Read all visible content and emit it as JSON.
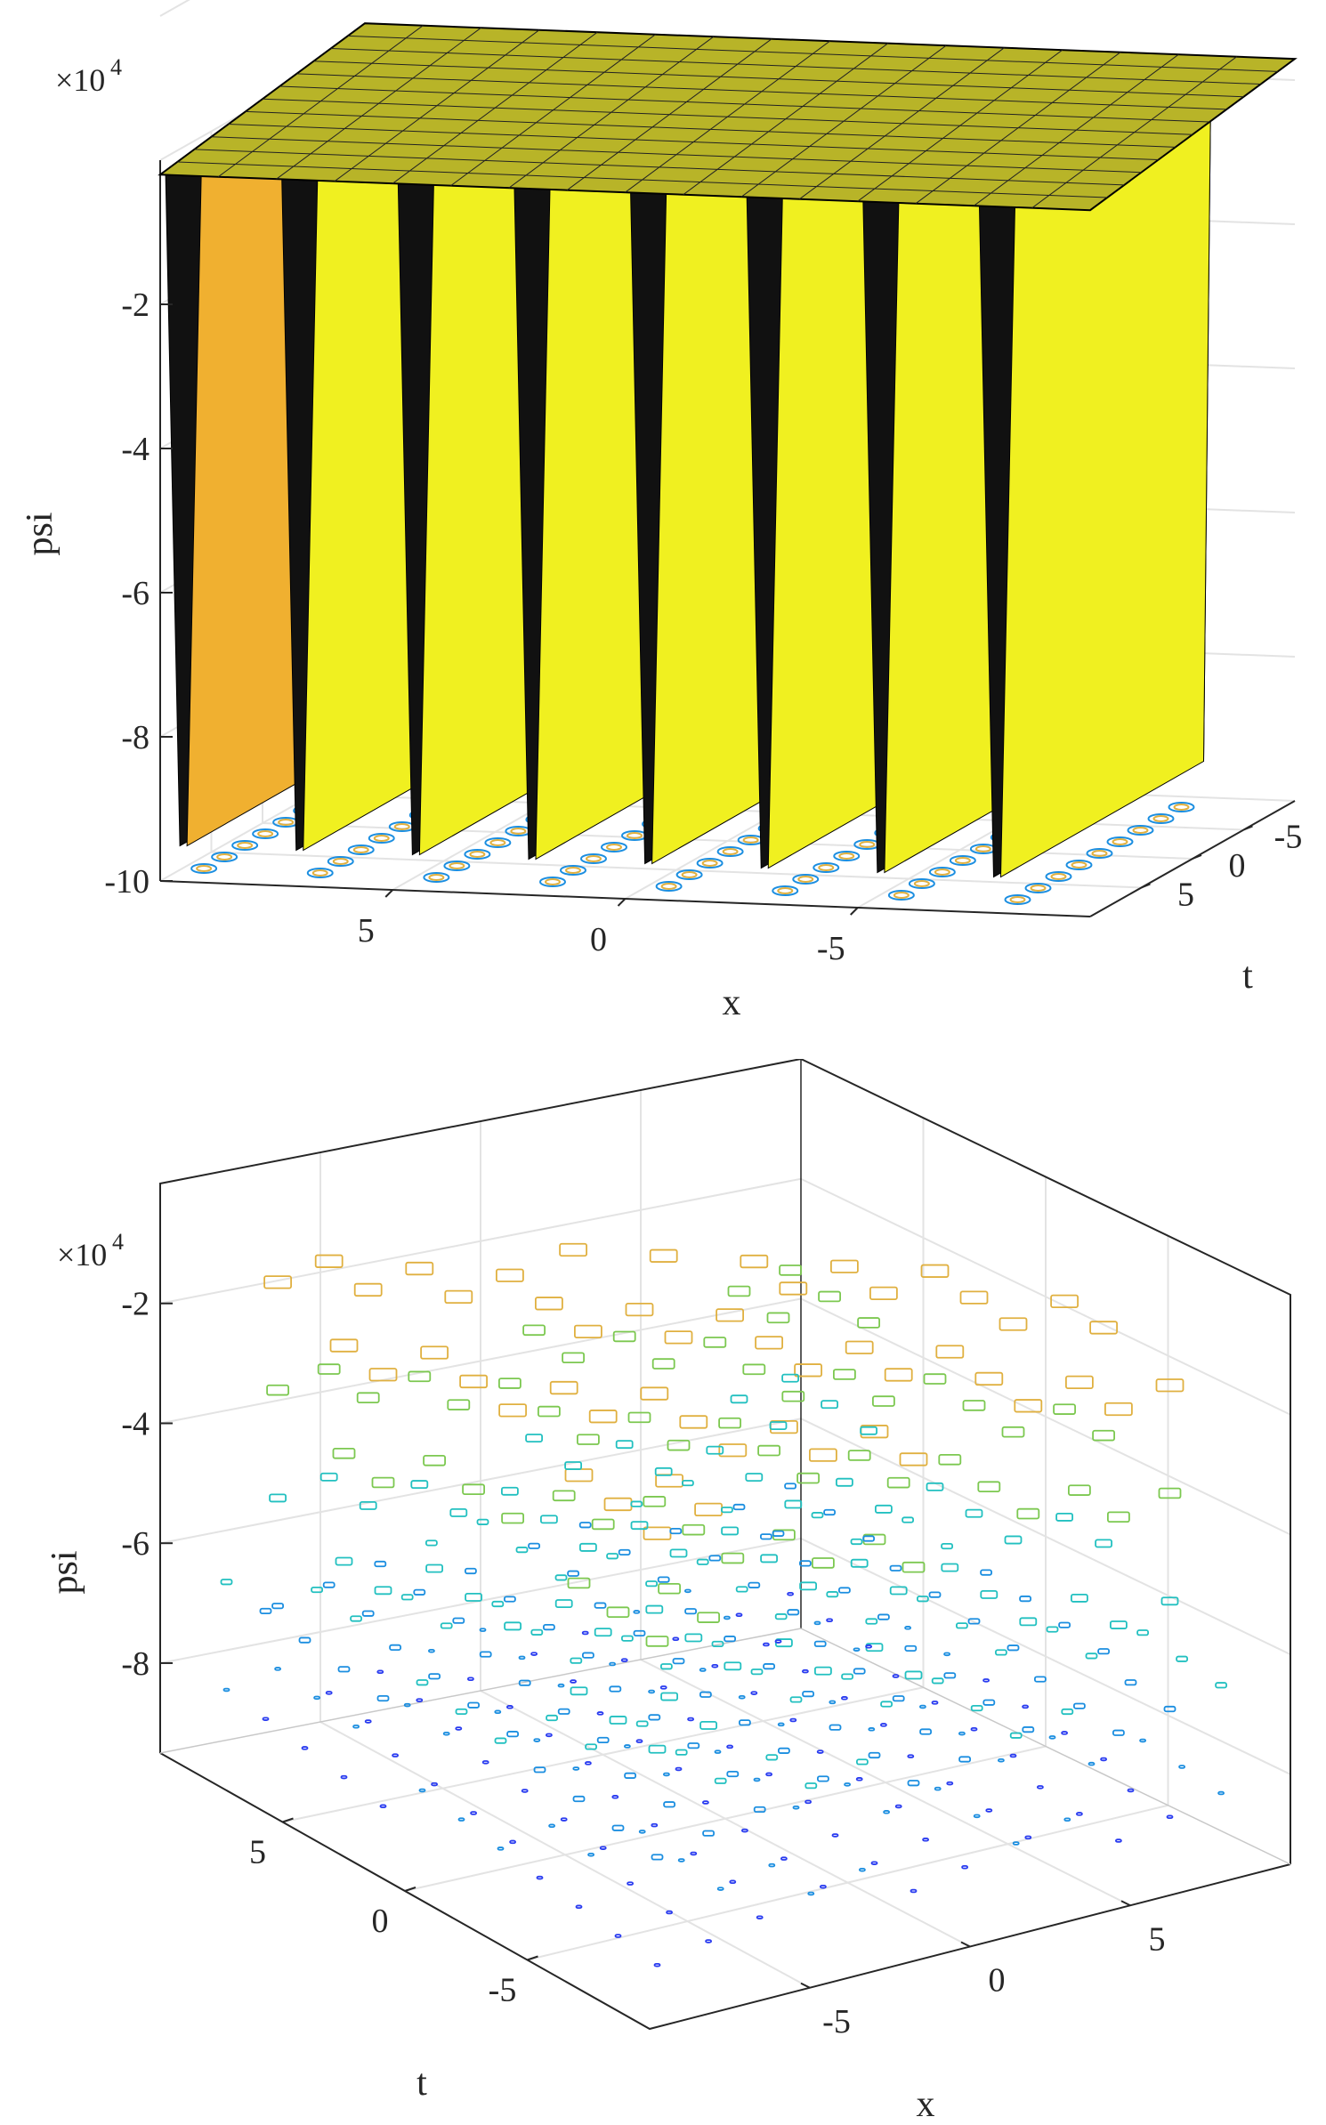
{
  "chart_data": [
    {
      "type": "surface",
      "subtype": "3d-surface-with-base-contour",
      "zlabel": "psi",
      "xlabel": "x",
      "ylabel": "t",
      "z_exponent_label": "×10",
      "z_exponent_power": "4",
      "zticks": [
        "-10",
        "-8",
        "-6",
        "-4",
        "-2"
      ],
      "xticks": [
        "5",
        "0",
        "-5"
      ],
      "yticks": [
        "-5",
        "0",
        "5"
      ],
      "xlim": [
        -10,
        10
      ],
      "ylim": [
        -10,
        10
      ],
      "zlim": [
        -100000,
        0
      ],
      "surface_plateau_z": -2000,
      "spike_min_z": -95000,
      "spike_x_positions": [
        9.5,
        7,
        4.5,
        2,
        -0.5,
        -3,
        -5.5,
        -8
      ],
      "colormap": [
        "#2b2b80",
        "#3a3aa8",
        "#e5a020",
        "#f0f020",
        "#ffff40"
      ],
      "surface_color": "#f0f020",
      "grid": true
    },
    {
      "type": "contour3",
      "zlabel": "psi",
      "xlabel": "x",
      "ylabel": "t",
      "z_exponent_label": "×10",
      "z_exponent_power": "4",
      "zticks": [
        "-8",
        "-6",
        "-4",
        "-2"
      ],
      "xticks": [
        "-5",
        "0",
        "5"
      ],
      "yticks": [
        "-5",
        "0",
        "5"
      ],
      "xlim": [
        -10,
        10
      ],
      "ylim": [
        -10,
        10
      ],
      "zlim": [
        -95000,
        0
      ],
      "colormap": [
        "#2a3cf0",
        "#1b8ee0",
        "#22c0c0",
        "#7cc850",
        "#e0b040",
        "#f0f040"
      ],
      "grid": true
    }
  ]
}
